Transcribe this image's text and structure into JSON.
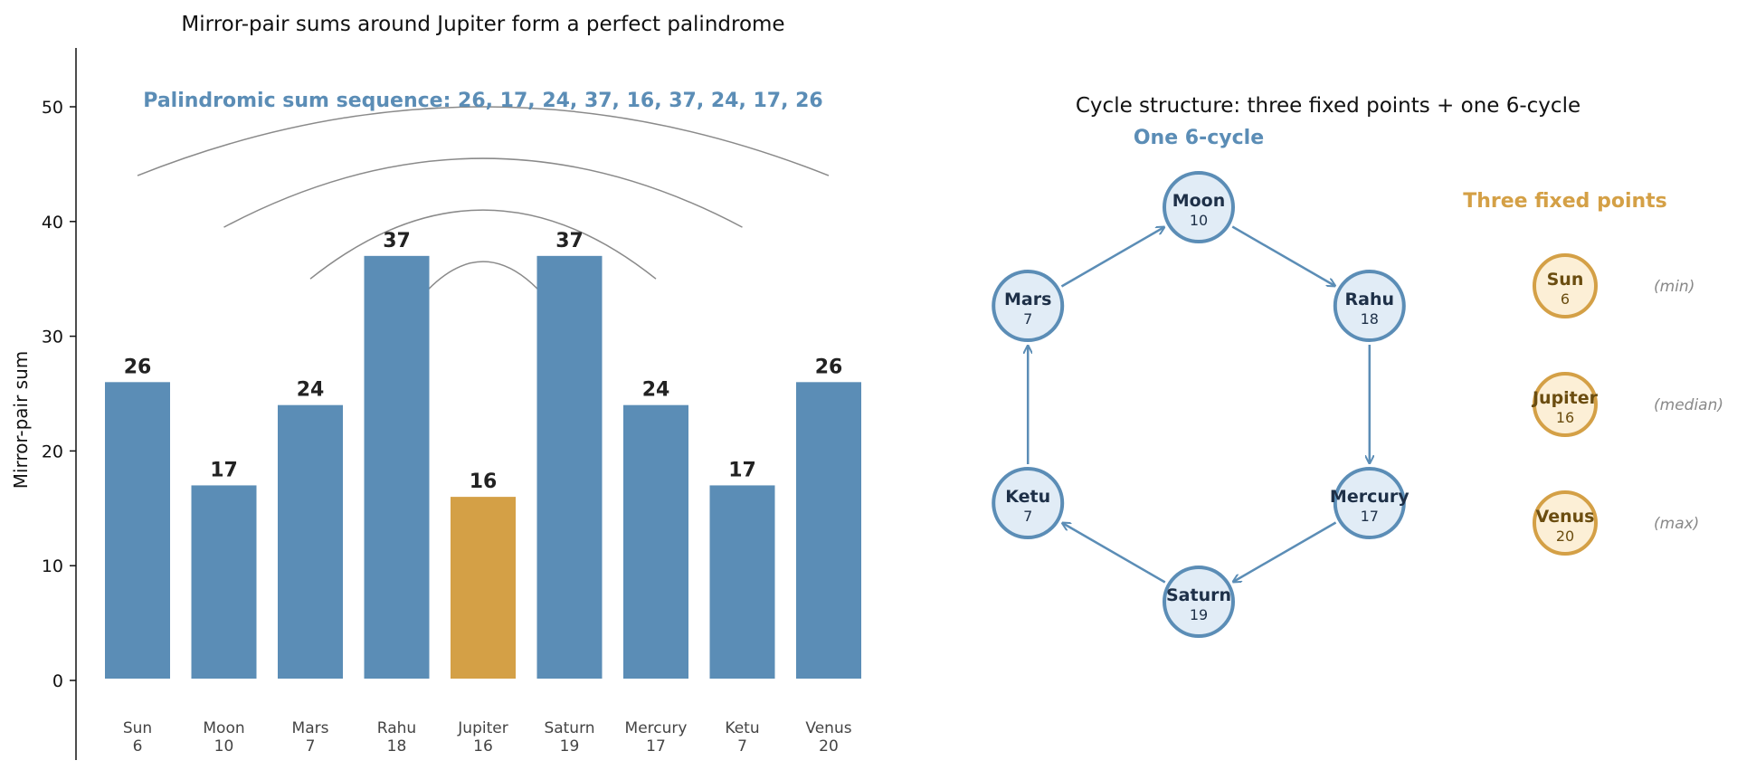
{
  "colors": {
    "bar": "#5b8db6",
    "highlight": "#d4a046",
    "arc": "#8a8a8a",
    "cycle_stroke": "#5b8db6",
    "cycle_fill": "#e1ecf6",
    "cycle_text": "#1e3048",
    "fixed_stroke": "#d4a046",
    "fixed_fill": "#fcefd6",
    "fixed_text": "#6b4d10"
  },
  "chart_data": [
    {
      "type": "bar",
      "title": "Mirror-pair sums around Jupiter form a perfect palindrome",
      "ylabel": "Mirror-pair sum",
      "xlabel": "",
      "ylim": [
        -7,
        55
      ],
      "yticks": [
        0,
        10,
        20,
        30,
        40,
        50
      ],
      "annotation": "Palindromic sum sequence: 26, 17, 24, 37, 16, 37, 24, 17, 26",
      "categories": [
        {
          "name": "Sun",
          "sub": "6"
        },
        {
          "name": "Moon",
          "sub": "10"
        },
        {
          "name": "Mars",
          "sub": "7"
        },
        {
          "name": "Rahu",
          "sub": "18"
        },
        {
          "name": "Jupiter",
          "sub": "16"
        },
        {
          "name": "Saturn",
          "sub": "19"
        },
        {
          "name": "Mercury",
          "sub": "17"
        },
        {
          "name": "Ketu",
          "sub": "7"
        },
        {
          "name": "Venus",
          "sub": "20"
        }
      ],
      "values": [
        26,
        17,
        24,
        37,
        16,
        37,
        24,
        17,
        26
      ],
      "highlight_index": 4,
      "mirror_arcs": [
        {
          "from": 0,
          "to": 8,
          "height": 50
        },
        {
          "from": 1,
          "to": 7,
          "height": 45.5
        },
        {
          "from": 2,
          "to": 6,
          "height": 41
        },
        {
          "from": 3,
          "to": 5,
          "height": 36.5
        }
      ]
    },
    {
      "type": "diagram",
      "title": "Cycle structure: three fixed points + one 6-cycle",
      "cycle_label": "One 6-cycle",
      "fixed_label": "Three fixed points",
      "cycle": [
        {
          "name": "Moon",
          "value": "10"
        },
        {
          "name": "Rahu",
          "value": "18"
        },
        {
          "name": "Mercury",
          "value": "17"
        },
        {
          "name": "Saturn",
          "value": "19"
        },
        {
          "name": "Ketu",
          "value": "7"
        },
        {
          "name": "Mars",
          "value": "7"
        }
      ],
      "fixed_points": [
        {
          "name": "Sun",
          "value": "6",
          "note": "(min)"
        },
        {
          "name": "Jupiter",
          "value": "16",
          "note": "(median)"
        },
        {
          "name": "Venus",
          "value": "20",
          "note": "(max)"
        }
      ]
    }
  ]
}
